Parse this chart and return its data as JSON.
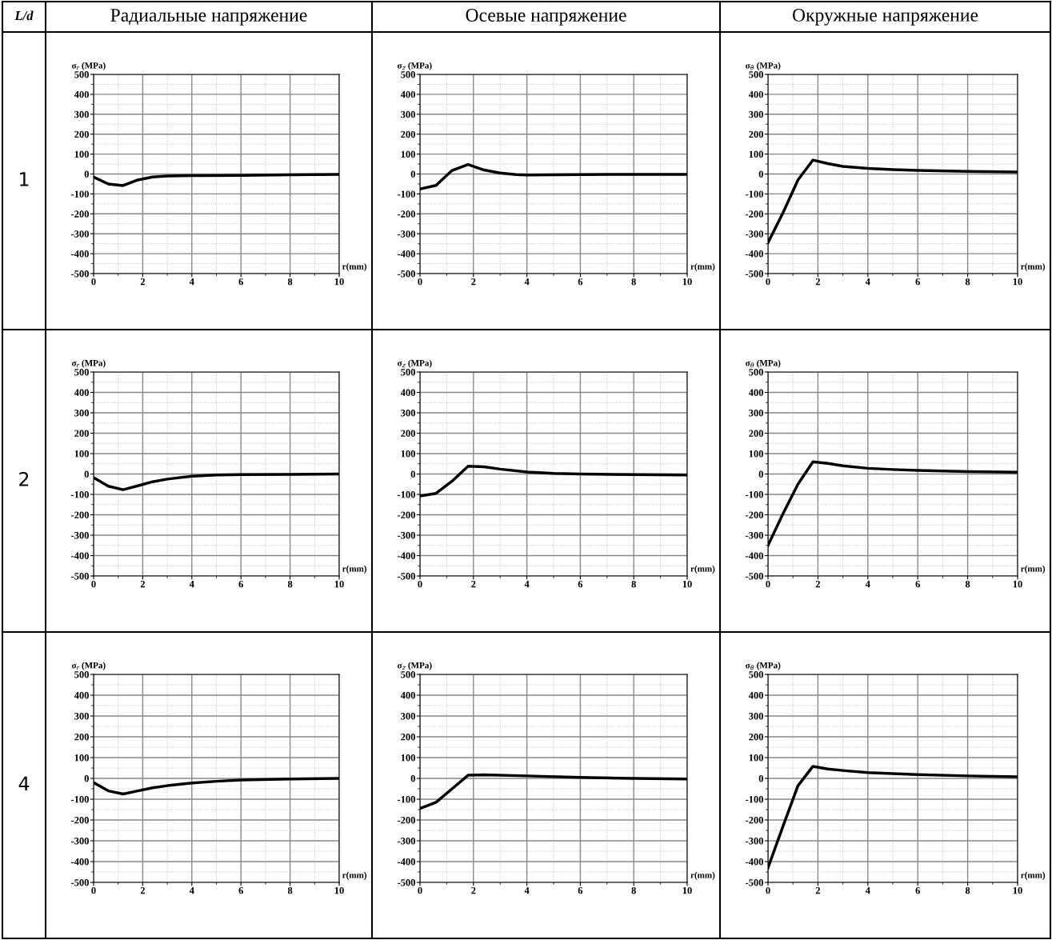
{
  "chart_data": [
    {
      "type": "line",
      "title": "Радиальные напряжение",
      "ylabel": "σ$_{r}$ (MPa)",
      "xlabel": "r(mm)",
      "annotations": [
        "L/d",
        "1"
      ],
      "xlim": [
        0,
        10
      ],
      "ylim": [
        -500,
        500
      ],
      "xticks": [
        0,
        2,
        4,
        6,
        8,
        10
      ],
      "yticks": [
        -500,
        -400,
        -300,
        -200,
        -100,
        0,
        100,
        200,
        300,
        400,
        500
      ],
      "grid": true,
      "legend": false,
      "series": [
        {
          "color": "#000000",
          "x": [
            0,
            0.6,
            1.2,
            1.8,
            2.4,
            3,
            4,
            6,
            8,
            10
          ],
          "values": [
            -15,
            -50,
            -58,
            -30,
            -15,
            -10,
            -8,
            -7,
            -4,
            -2
          ]
        }
      ]
    },
    {
      "type": "line",
      "title": "Осевые напряжение",
      "ylabel": "σ$_{z}$ (MPa)",
      "xlabel": "r(mm)",
      "xlim": [
        0,
        10
      ],
      "ylim": [
        -500,
        500
      ],
      "xticks": [
        0,
        2,
        4,
        6,
        8,
        10
      ],
      "yticks": [
        -500,
        -400,
        -300,
        -200,
        -100,
        0,
        100,
        200,
        300,
        400,
        500
      ],
      "grid": true,
      "legend": false,
      "series": [
        {
          "color": "#000000",
          "x": [
            0,
            0.6,
            1.2,
            1.8,
            2.4,
            3,
            3.6,
            4,
            6,
            8,
            10
          ],
          "values": [
            -75,
            -57,
            18,
            48,
            20,
            5,
            -3,
            -5,
            -3,
            -2,
            -2
          ]
        }
      ]
    },
    {
      "type": "line",
      "title": "Окружные напряжение",
      "ylabel": "σ$_{θ}$ (MPa)",
      "xlabel": "r(mm)",
      "xlim": [
        0,
        10
      ],
      "ylim": [
        -500,
        500
      ],
      "xticks": [
        0,
        2,
        4,
        6,
        8,
        10
      ],
      "yticks": [
        -500,
        -400,
        -300,
        -200,
        -100,
        0,
        100,
        200,
        300,
        400,
        500
      ],
      "grid": true,
      "legend": false,
      "series": [
        {
          "color": "#000000",
          "x": [
            0,
            0.6,
            1.2,
            1.8,
            2.4,
            3,
            4,
            5,
            6,
            8,
            10
          ],
          "values": [
            -345,
            -195,
            -30,
            70,
            52,
            38,
            28,
            22,
            18,
            13,
            10
          ]
        }
      ]
    },
    {
      "type": "line",
      "ylabel": "σ$_{r}$ (MPa)",
      "xlabel": "r(mm)",
      "annotations": [
        "2"
      ],
      "xlim": [
        0,
        10
      ],
      "ylim": [
        -500,
        500
      ],
      "xticks": [
        0,
        2,
        4,
        6,
        8,
        10
      ],
      "yticks": [
        -500,
        -400,
        -300,
        -200,
        -100,
        0,
        100,
        200,
        300,
        400,
        500
      ],
      "grid": true,
      "legend": false,
      "series": [
        {
          "color": "#000000",
          "x": [
            0,
            0.6,
            1.2,
            1.8,
            2.4,
            3,
            4,
            5,
            6,
            8,
            10
          ],
          "values": [
            -18,
            -60,
            -77,
            -58,
            -38,
            -25,
            -11,
            -5,
            -3,
            -2,
            0
          ]
        }
      ]
    },
    {
      "type": "line",
      "ylabel": "σ$_{z}$ (MPa)",
      "xlabel": "r(mm)",
      "xlim": [
        0,
        10
      ],
      "ylim": [
        -500,
        500
      ],
      "xticks": [
        0,
        2,
        4,
        6,
        8,
        10
      ],
      "yticks": [
        -500,
        -400,
        -300,
        -200,
        -100,
        0,
        100,
        200,
        300,
        400,
        500
      ],
      "grid": true,
      "legend": false,
      "series": [
        {
          "color": "#000000",
          "x": [
            0,
            0.6,
            1.2,
            1.8,
            2.4,
            3,
            4,
            5,
            6,
            8,
            10
          ],
          "values": [
            -108,
            -95,
            -35,
            38,
            35,
            24,
            10,
            3,
            0,
            -3,
            -5
          ]
        }
      ]
    },
    {
      "type": "line",
      "ylabel": "σ$_{θ}$ (MPa)",
      "xlabel": "r(mm)",
      "xlim": [
        0,
        10
      ],
      "ylim": [
        -500,
        500
      ],
      "xticks": [
        0,
        2,
        4,
        6,
        8,
        10
      ],
      "yticks": [
        -500,
        -400,
        -300,
        -200,
        -100,
        0,
        100,
        200,
        300,
        400,
        500
      ],
      "grid": true,
      "legend": false,
      "series": [
        {
          "color": "#000000",
          "x": [
            0,
            0.6,
            1.2,
            1.8,
            2.4,
            3,
            4,
            5,
            6,
            8,
            10
          ],
          "values": [
            -350,
            -195,
            -50,
            60,
            52,
            40,
            28,
            22,
            18,
            12,
            9
          ]
        }
      ]
    },
    {
      "type": "line",
      "ylabel": "σ$_{r}$ (MPa)",
      "xlabel": "r(mm)",
      "annotations": [
        "4"
      ],
      "xlim": [
        0,
        10
      ],
      "ylim": [
        -500,
        500
      ],
      "xticks": [
        0,
        2,
        4,
        6,
        8,
        10
      ],
      "yticks": [
        -500,
        -400,
        -300,
        -200,
        -100,
        0,
        100,
        200,
        300,
        400,
        500
      ],
      "grid": true,
      "legend": false,
      "series": [
        {
          "color": "#000000",
          "x": [
            0,
            0.6,
            1.2,
            1.8,
            2.4,
            3,
            4,
            5,
            6,
            8,
            10
          ],
          "values": [
            -20,
            -60,
            -75,
            -60,
            -45,
            -35,
            -22,
            -14,
            -8,
            -3,
            0
          ]
        }
      ]
    },
    {
      "type": "line",
      "ylabel": "σ$_{z}$ (MPa)",
      "xlabel": "r(mm)",
      "xlim": [
        0,
        10
      ],
      "ylim": [
        -500,
        500
      ],
      "xticks": [
        0,
        2,
        4,
        6,
        8,
        10
      ],
      "yticks": [
        -500,
        -400,
        -300,
        -200,
        -100,
        0,
        100,
        200,
        300,
        400,
        500
      ],
      "grid": true,
      "legend": false,
      "series": [
        {
          "color": "#000000",
          "x": [
            0,
            0.6,
            1.2,
            1.8,
            2.4,
            4,
            6,
            8,
            10
          ],
          "values": [
            -145,
            -115,
            -50,
            15,
            17,
            12,
            5,
            0,
            -3
          ]
        }
      ]
    },
    {
      "type": "line",
      "ylabel": "σ$_{θ}$ (MPa)",
      "xlabel": "r(mm)",
      "xlim": [
        0,
        10
      ],
      "ylim": [
        -500,
        500
      ],
      "xticks": [
        0,
        2,
        4,
        6,
        8,
        10
      ],
      "yticks": [
        -500,
        -400,
        -300,
        -200,
        -100,
        0,
        100,
        200,
        300,
        400,
        500
      ],
      "grid": true,
      "legend": false,
      "series": [
        {
          "color": "#000000",
          "x": [
            0,
            0.6,
            1.2,
            1.8,
            2.4,
            3,
            4,
            6,
            8,
            10
          ],
          "values": [
            -430,
            -230,
            -35,
            58,
            45,
            38,
            28,
            18,
            12,
            8
          ]
        }
      ]
    }
  ]
}
